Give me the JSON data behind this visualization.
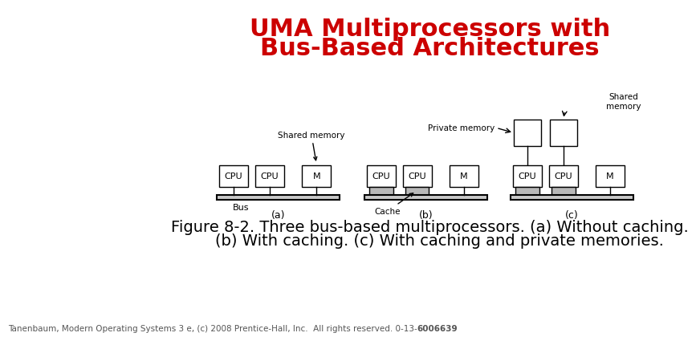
{
  "title_line1": "UMA Multiprocessors with",
  "title_line2": "Bus-Based Architectures",
  "title_color": "#cc0000",
  "title_fontsize": 22,
  "caption_line1": "Figure 8-2. Three bus-based multiprocessors. (a) Without caching.",
  "caption_line2": "    (b) With caching. (c) With caching and private memories.",
  "caption_fontsize": 14,
  "footer_main": "Tanenbaum, Modern Operating Systems 3 e, (c) 2008 Prentice-Hall, Inc.  All rights reserved. 0-13-",
  "footer_bold": "6006639",
  "footer_fontsize": 7.5,
  "bg_color": "#ffffff",
  "cache_color": "#b8b8b8",
  "bus_color": "#c8c8c8",
  "label_a": "(a)",
  "label_b": "(b)",
  "label_c": "(c)"
}
